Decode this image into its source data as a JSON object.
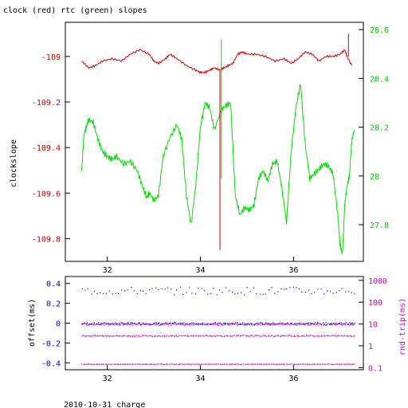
{
  "chart_data": [
    {
      "type": "line",
      "title": "clock (red) rtc (green) slopes",
      "ylabel": "clockslope",
      "x_ticks": [
        32,
        34,
        36
      ],
      "xlim": [
        31.1,
        37.5
      ],
      "ylim_left": [
        -109.9,
        -108.85
      ],
      "ylim_right": [
        27.65,
        28.63
      ],
      "y_ticks_left": [
        -109,
        -109.2,
        -109.4,
        -109.6,
        -109.8
      ],
      "y_ticks_right": [
        28.6,
        28.4,
        28.2,
        28,
        27.8
      ],
      "y_ticks_left_labels": [
        "-109",
        "-109.2",
        "-109.4",
        "-109.6",
        "-109.8"
      ],
      "y_ticks_right_labels": [
        "28.6",
        "28.4",
        "28.2",
        "28",
        "27.8"
      ],
      "series": [
        {
          "name": "clock",
          "color": "#cc0000",
          "axis": "left",
          "x": [
            31.45,
            31.6,
            31.75,
            31.9,
            32.1,
            32.3,
            32.5,
            32.7,
            32.9,
            33.0,
            33.1,
            33.25,
            33.35,
            33.5,
            33.7,
            33.9,
            34.0,
            34.1,
            34.2,
            34.3,
            34.42,
            34.5,
            34.6,
            34.7,
            34.8,
            34.9,
            35.0,
            35.2,
            35.4,
            35.6,
            35.8,
            35.95,
            36.1,
            36.25,
            36.4,
            36.55,
            36.7,
            36.85,
            37.0,
            37.1,
            37.15,
            37.25
          ],
          "values": [
            -109.02,
            -109.05,
            -109.04,
            -109.02,
            -109.01,
            -109.02,
            -108.99,
            -108.97,
            -108.99,
            -109.02,
            -109.03,
            -109.01,
            -108.99,
            -109.01,
            -109.04,
            -109.06,
            -109.07,
            -109.07,
            -109.06,
            -109.05,
            -109.06,
            -109.05,
            -109.04,
            -109.03,
            -108.99,
            -108.98,
            -108.99,
            -108.99,
            -109.0,
            -109.02,
            -109.01,
            -109.03,
            -109.01,
            -108.98,
            -108.99,
            -109.02,
            -109.0,
            -109.0,
            -108.99,
            -108.97,
            -109.0,
            -109.04
          ]
        },
        {
          "name": "rtc",
          "color": "#00dd00",
          "axis": "right",
          "x": [
            31.45,
            31.5,
            31.55,
            31.6,
            31.7,
            31.8,
            31.9,
            32.0,
            32.1,
            32.2,
            32.35,
            32.5,
            32.65,
            32.75,
            32.85,
            32.9,
            33.0,
            33.1,
            33.2,
            33.35,
            33.5,
            33.6,
            33.7,
            33.8,
            33.9,
            34.0,
            34.1,
            34.2,
            34.3,
            34.45,
            34.55,
            34.65,
            34.75,
            34.85,
            34.95,
            35.05,
            35.15,
            35.25,
            35.35,
            35.45,
            35.55,
            35.65,
            35.75,
            35.85,
            35.95,
            36.05,
            36.15,
            36.25,
            36.35,
            36.45,
            36.55,
            36.65,
            36.75,
            36.85,
            36.95,
            37.0,
            37.05,
            37.1,
            37.15,
            37.2,
            37.25,
            37.3
          ],
          "values": [
            28.02,
            28.17,
            28.2,
            28.23,
            28.22,
            28.15,
            28.1,
            28.08,
            28.07,
            28.08,
            28.05,
            28.06,
            28.02,
            27.96,
            27.91,
            27.93,
            27.9,
            27.92,
            28.08,
            28.16,
            28.21,
            28.15,
            27.92,
            27.8,
            27.96,
            28.2,
            28.3,
            28.28,
            28.19,
            28.27,
            28.29,
            28.3,
            27.92,
            27.84,
            27.87,
            27.86,
            27.88,
            27.99,
            28.02,
            27.98,
            28.05,
            28.06,
            27.95,
            27.81,
            28.1,
            28.28,
            28.38,
            28.13,
            27.99,
            28.01,
            28.03,
            28.05,
            28.04,
            28.01,
            27.84,
            27.72,
            27.68,
            27.88,
            27.96,
            28.0,
            28.14,
            28.19
          ]
        }
      ],
      "spikes": [
        {
          "series": "clock",
          "x": 34.42,
          "from": -109.06,
          "to": -109.85
        },
        {
          "series": "rtc",
          "x": 34.45,
          "from": 28.27,
          "to": 28.56
        },
        {
          "series": "rtc",
          "x": 34.45,
          "from": 28.27,
          "to": 27.99
        },
        {
          "series": "clock",
          "x": 37.18,
          "from": -109.0,
          "to": -108.9
        }
      ]
    },
    {
      "type": "scatter",
      "ylabel_left": "offset(ms)",
      "ylabel_right": "rnd-trip(ms)",
      "x_ticks": [
        32,
        34,
        36
      ],
      "xlim": [
        31.1,
        37.5
      ],
      "ylim_left": [
        -0.47,
        0.47
      ],
      "y_ticks_left": [
        0.4,
        0.2,
        0,
        -0.2,
        -0.4
      ],
      "y_ticks_left_labels": [
        "0.4",
        "0.2",
        "0",
        "-0.2",
        "-0.4"
      ],
      "y_log_right": true,
      "ylim_right": [
        0.08,
        1500
      ],
      "y_ticks_right": [
        1000,
        100,
        10,
        1,
        0.1
      ],
      "y_ticks_right_labels": [
        "1000",
        "100",
        "10",
        "1",
        "0.1"
      ],
      "series": [
        {
          "name": "offset",
          "color": "#0000cc",
          "axis": "left",
          "level": 0.0,
          "spread": 0.01
        },
        {
          "name": "offset-outliers",
          "color": "#0000cc",
          "axis": "left",
          "level": 0.33,
          "spread": 0.04,
          "sparse": true
        },
        {
          "name": "rnd-trip-high",
          "color": "#dd00dd",
          "axis": "right",
          "level": 10,
          "spread": 0.04
        },
        {
          "name": "rnd-trip-mid",
          "color": "#dd00dd",
          "axis": "right",
          "level": 3,
          "spread": 0.03
        },
        {
          "name": "rnd-trip-low",
          "color": "#dd00dd",
          "axis": "right",
          "level": 0.15,
          "spread": 0.01
        }
      ]
    }
  ],
  "footer": "2010-10-31 charge"
}
